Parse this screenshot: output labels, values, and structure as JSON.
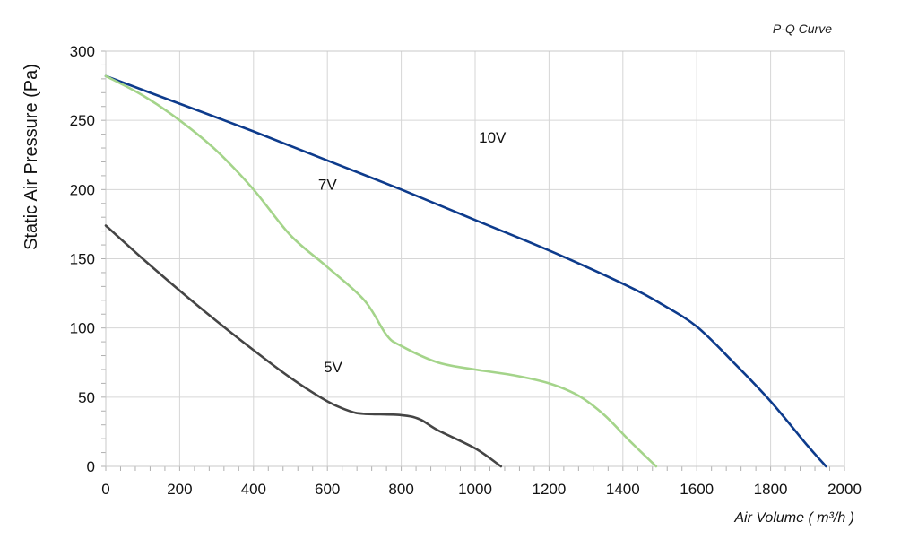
{
  "chart_data": {
    "type": "line",
    "title": "P-Q Curve",
    "xlabel": "Air Volume ( m³/h )",
    "ylabel": "Static Air Pressure  (Pa)",
    "xlim": [
      0,
      2000
    ],
    "ylim": [
      0,
      300
    ],
    "x_ticks": [
      0,
      200,
      400,
      600,
      800,
      1000,
      1200,
      1400,
      1600,
      1800,
      2000
    ],
    "y_ticks": [
      0,
      50,
      100,
      150,
      200,
      250,
      300
    ],
    "grid": true,
    "series": [
      {
        "name": "10V",
        "color": "#0d3b8c",
        "points": [
          [
            0,
            282
          ],
          [
            200,
            262
          ],
          [
            400,
            242
          ],
          [
            600,
            221
          ],
          [
            800,
            200
          ],
          [
            1000,
            178
          ],
          [
            1200,
            156
          ],
          [
            1400,
            132
          ],
          [
            1500,
            118
          ],
          [
            1600,
            101
          ],
          [
            1700,
            75
          ],
          [
            1800,
            47
          ],
          [
            1900,
            15
          ],
          [
            1950,
            0
          ]
        ]
      },
      {
        "name": "7V",
        "color": "#a4d48a",
        "points": [
          [
            0,
            282
          ],
          [
            100,
            268
          ],
          [
            200,
            250
          ],
          [
            300,
            228
          ],
          [
            400,
            200
          ],
          [
            500,
            167
          ],
          [
            600,
            144
          ],
          [
            700,
            120
          ],
          [
            760,
            95
          ],
          [
            800,
            87
          ],
          [
            900,
            75
          ],
          [
            1000,
            70
          ],
          [
            1100,
            66
          ],
          [
            1200,
            60
          ],
          [
            1280,
            51
          ],
          [
            1350,
            37
          ],
          [
            1420,
            18
          ],
          [
            1490,
            0
          ]
        ]
      },
      {
        "name": "5V",
        "color": "#454545",
        "points": [
          [
            0,
            174
          ],
          [
            100,
            150
          ],
          [
            200,
            127
          ],
          [
            300,
            105
          ],
          [
            400,
            84
          ],
          [
            500,
            64
          ],
          [
            600,
            47
          ],
          [
            660,
            40
          ],
          [
            700,
            38
          ],
          [
            800,
            37
          ],
          [
            850,
            34
          ],
          [
            900,
            26
          ],
          [
            1000,
            13
          ],
          [
            1070,
            0
          ]
        ]
      }
    ],
    "series_labels": [
      {
        "text": "10V",
        "x": 1010,
        "y": 234
      },
      {
        "text": "7V",
        "x": 575,
        "y": 200
      },
      {
        "text": "5V",
        "x": 590,
        "y": 68
      }
    ]
  }
}
